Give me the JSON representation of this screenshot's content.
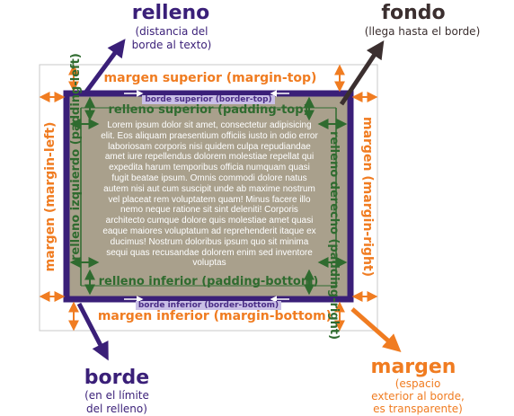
{
  "relleno": {
    "title": "relleno",
    "sub1": "(distancia del",
    "sub2": "borde al texto)"
  },
  "fondo": {
    "title": "fondo",
    "sub": "(llega hasta el borde)"
  },
  "borde": {
    "title": "borde",
    "sub1": "(en el límite",
    "sub2": "del relleno)"
  },
  "margen": {
    "title": "margen",
    "sub1": "(espacio",
    "sub2": "exterior al borde,",
    "sub3": "es transparente)"
  },
  "labels": {
    "margin_top": "margen superior (margin-top)",
    "margin_bottom": "margen inferior (margin-bottom)",
    "margin_left": "margen (margin-left)",
    "margin_right": "margen (margin-right)",
    "border_top": "borde superior (border-top)",
    "border_bottom": "borde inferior (border-bottom)",
    "padding_top": "relleno superior (padding-top)",
    "padding_bottom": "relleno inferior (padding-bottom)",
    "padding_left": "relleno izquierdo (padding-left)",
    "padding_right": "relleno derecho (padding-right)"
  },
  "content": "Lorem ipsum dolor sit amet, consectetur adipisicing elit. Eos aliquam praesentium officiis iusto in odio error laboriosam corporis nisi quidem culpa repudiandae amet iure repellendus dolorem molestiae repellat qui expedita harum temporibus officia numquam quasi fugit beatae ipsum. Omnis commodi dolore natus autem nisi aut cum suscipit unde ab maxime nostrum vel placeat rem voluptatem quam! Minus facere illo nemo neque ratione sit sint deleniti! Corporis architecto cumque dolore quis molestiae amet quasi eaque maiores voluptatum ad reprehenderit itaque ex ducimus! Nostrum doloribus ipsum quo sit minima sequi quas recusandae dolorem enim sed inventore voluptas",
  "colors": {
    "margin": "#f07c21",
    "padding": "#2f6b2f",
    "border": "#3a1f78",
    "background": "#a9a08c",
    "outline": "#c8c8c8",
    "fondo_arrow": "#3b2f2f"
  }
}
